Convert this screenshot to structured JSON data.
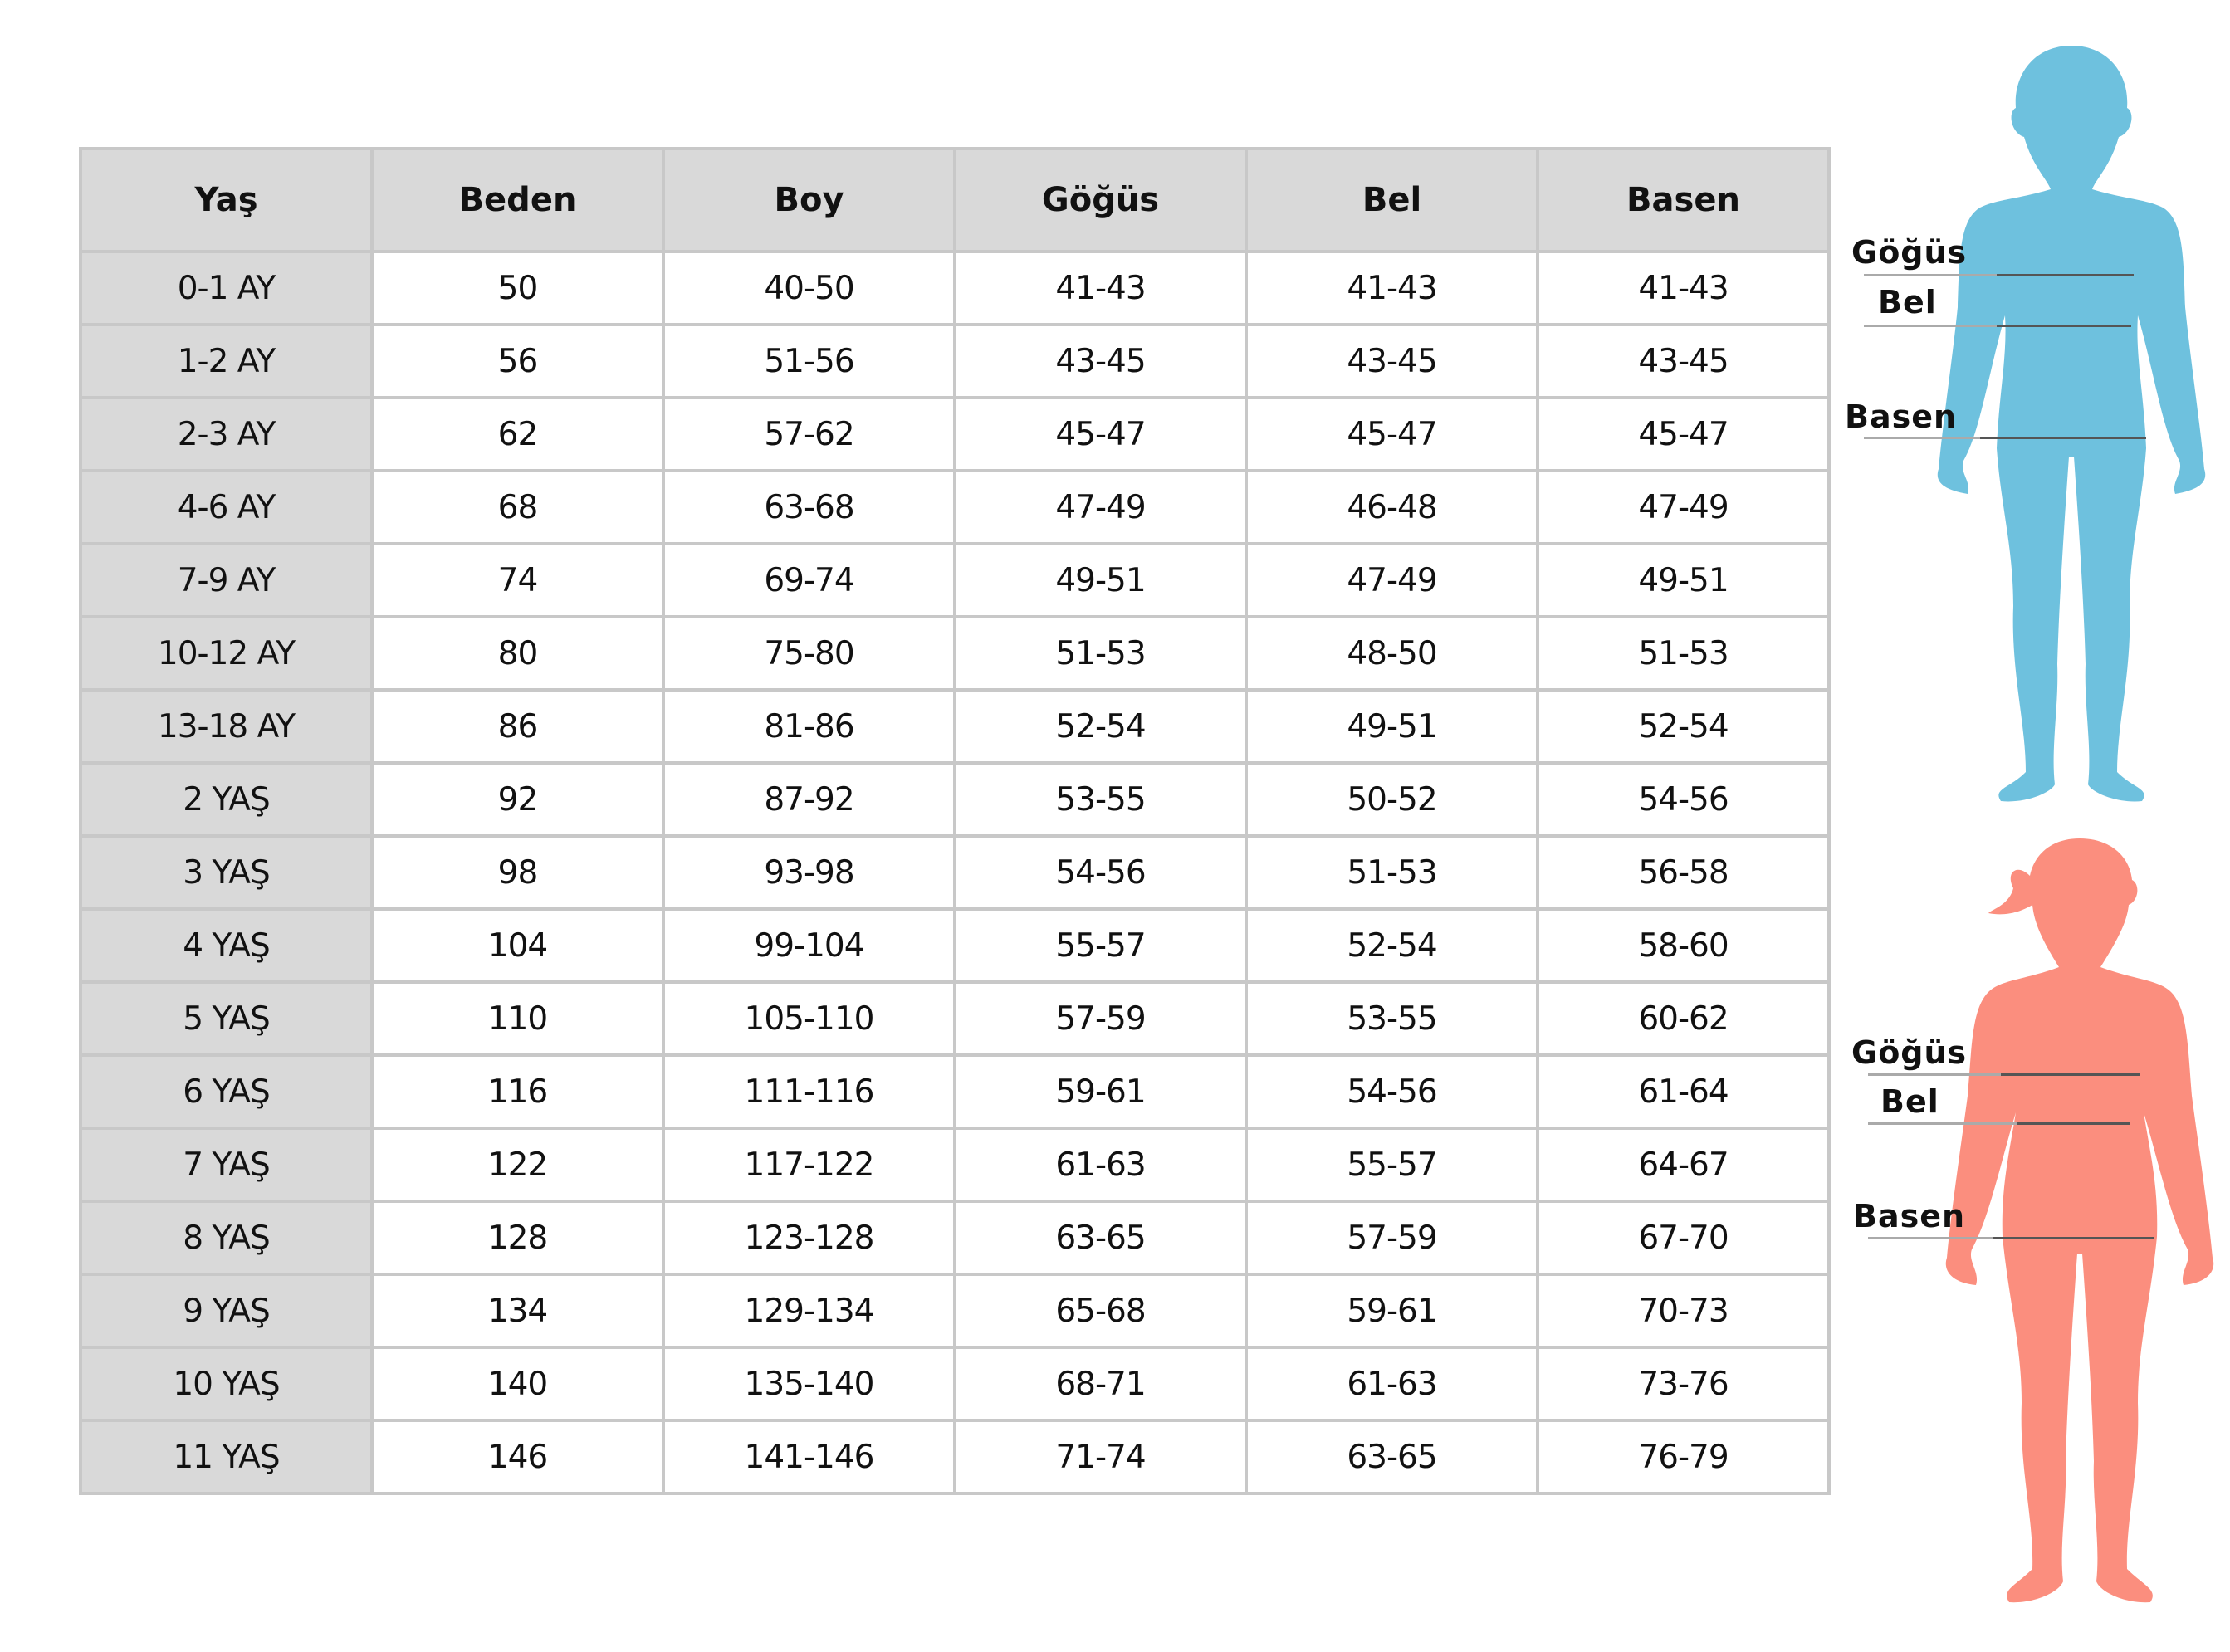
{
  "table": {
    "headers": [
      "Yaş",
      "Beden",
      "Boy",
      "Göğüs",
      "Bel",
      "Basen"
    ],
    "rows": [
      [
        "0-1 AY",
        "50",
        "40-50",
        "41-43",
        "41-43",
        "41-43"
      ],
      [
        "1-2 AY",
        "56",
        "51-56",
        "43-45",
        "43-45",
        "43-45"
      ],
      [
        "2-3 AY",
        "62",
        "57-62",
        "45-47",
        "45-47",
        "45-47"
      ],
      [
        "4-6 AY",
        "68",
        "63-68",
        "47-49",
        "46-48",
        "47-49"
      ],
      [
        "7-9 AY",
        "74",
        "69-74",
        "49-51",
        "47-49",
        "49-51"
      ],
      [
        "10-12 AY",
        "80",
        "75-80",
        "51-53",
        "48-50",
        "51-53"
      ],
      [
        "13-18 AY",
        "86",
        "81-86",
        "52-54",
        "49-51",
        "52-54"
      ],
      [
        "2 YAŞ",
        "92",
        "87-92",
        "53-55",
        "50-52",
        "54-56"
      ],
      [
        "3 YAŞ",
        "98",
        "93-98",
        "54-56",
        "51-53",
        "56-58"
      ],
      [
        "4 YAŞ",
        "104",
        "99-104",
        "55-57",
        "52-54",
        "58-60"
      ],
      [
        "5 YAŞ",
        "110",
        "105-110",
        "57-59",
        "53-55",
        "60-62"
      ],
      [
        "6 YAŞ",
        "116",
        "111-116",
        "59-61",
        "54-56",
        "61-64"
      ],
      [
        "7 YAŞ",
        "122",
        "117-122",
        "61-63",
        "55-57",
        "64-67"
      ],
      [
        "8 YAŞ",
        "128",
        "123-128",
        "63-65",
        "57-59",
        "67-70"
      ],
      [
        "9 YAŞ",
        "134",
        "129-134",
        "65-68",
        "59-61",
        "70-73"
      ],
      [
        "10 YAŞ",
        "140",
        "135-140",
        "68-71",
        "61-63",
        "73-76"
      ],
      [
        "11 YAŞ",
        "146",
        "141-146",
        "71-74",
        "63-65",
        "76-79"
      ]
    ]
  },
  "figures": {
    "boy": {
      "color": "#6ec1de",
      "labels": {
        "chest": "Göğüs",
        "waist": "Bel",
        "hip": "Basen"
      }
    },
    "girl": {
      "color": "#fb8e7e",
      "labels": {
        "chest": "Göğüs",
        "waist": "Bel",
        "hip": "Basen"
      }
    }
  }
}
